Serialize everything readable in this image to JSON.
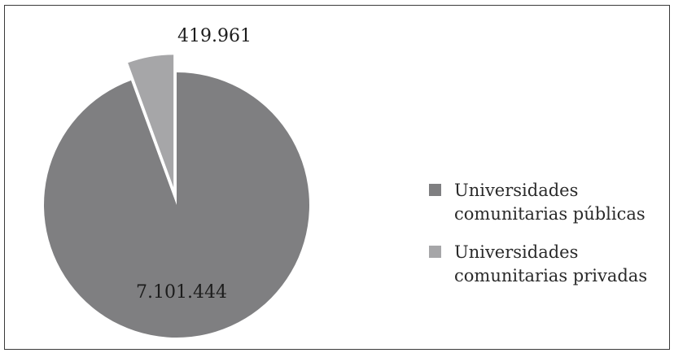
{
  "chart_data": {
    "type": "pie",
    "title": "",
    "slices": [
      {
        "label_lines": [
          "Universidades",
          "comunitarias públicas"
        ],
        "value": 7101444,
        "value_label": "7.101.444",
        "color": "#7f7f81",
        "exploded": false
      },
      {
        "label_lines": [
          "Universidades",
          "comunitarias privadas"
        ],
        "value": 419961,
        "value_label": "419.961",
        "color": "#a6a6a8",
        "exploded": true
      }
    ],
    "legend_position": "right",
    "start_angle": "12 o'clock",
    "direction": "clockwise"
  }
}
